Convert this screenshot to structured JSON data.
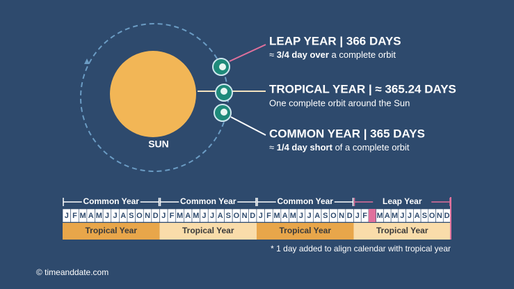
{
  "sun_label": "SUN",
  "callouts": [
    {
      "title": "LEAP YEAR | 366 DAYS",
      "prefix": "≈ ",
      "bold": "3/4 day over",
      "suffix": " a complete orbit"
    },
    {
      "title": "TROPICAL YEAR | ≈ 365.24 DAYS",
      "text": "One complete orbit around the Sun"
    },
    {
      "title": "COMMON YEAR | 365 DAYS",
      "prefix": "≈ ",
      "bold": "1/4 day short",
      "suffix": " of a complete orbit"
    }
  ],
  "timeline": {
    "years": [
      "Common Year",
      "Common Year",
      "Common Year",
      "Leap Year"
    ],
    "months": [
      "J",
      "F",
      "M",
      "A",
      "M",
      "J",
      "J",
      "A",
      "S",
      "O",
      "N",
      "D"
    ],
    "tropical": [
      "Tropical Year",
      "Tropical Year",
      "Tropical Year",
      "Tropical Year"
    ],
    "note": "* 1 day added to align calendar with tropical year"
  },
  "footer": "© timeanddate.com"
}
